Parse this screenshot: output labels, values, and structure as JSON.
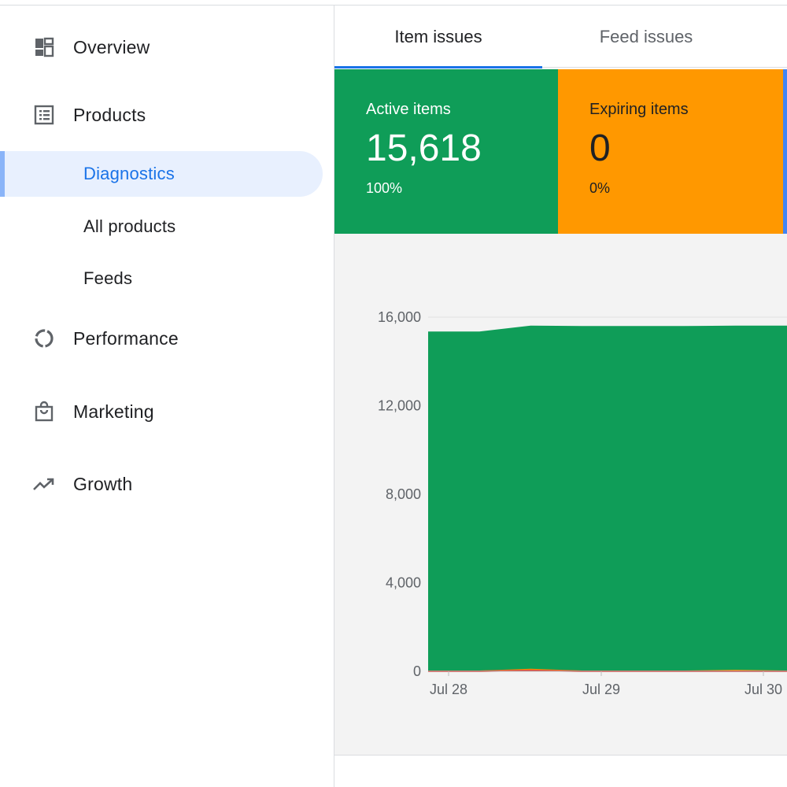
{
  "sidebar": {
    "items": [
      {
        "label": "Overview",
        "icon": "dashboard-icon"
      },
      {
        "label": "Products",
        "icon": "list-icon"
      },
      {
        "label": "Performance",
        "icon": "donut-chart-icon"
      },
      {
        "label": "Marketing",
        "icon": "shopping-bag-icon"
      },
      {
        "label": "Growth",
        "icon": "trending-up-icon"
      }
    ],
    "sub_items": [
      {
        "label": "Diagnostics",
        "active": true
      },
      {
        "label": "All products",
        "active": false
      },
      {
        "label": "Feeds",
        "active": false
      }
    ]
  },
  "tabs": [
    {
      "label": "Item issues",
      "active": true
    },
    {
      "label": "Feed issues",
      "active": false
    }
  ],
  "cards": [
    {
      "title": "Active items",
      "value": "15,618",
      "percent": "100%",
      "color": "#0f9d58"
    },
    {
      "title": "Expiring items",
      "value": "0",
      "percent": "0%",
      "color": "#ff9800"
    }
  ],
  "colors": {
    "accent": "#1a73e8",
    "active_bg": "#e8f0fe",
    "green": "#0f9d58",
    "orange": "#ff9800",
    "blue": "#4285f4"
  },
  "chart_data": {
    "type": "area",
    "x": [
      "Jul 28",
      "Jul 28",
      "Jul 28",
      "Jul 28",
      "Jul 29",
      "Jul 29",
      "Jul 29",
      "Jul 30"
    ],
    "x_ticks": [
      "Jul 28",
      "Jul 29",
      "Jul 30"
    ],
    "y_ticks": [
      "0",
      "4,000",
      "8,000",
      "12,000",
      "16,000"
    ],
    "ylim": [
      0,
      16000
    ],
    "series": [
      {
        "values": [
          15350,
          15350,
          15620,
          15600,
          15600,
          15600,
          15620,
          15618
        ],
        "color": "#0f9d58"
      },
      {
        "values": [
          0,
          0,
          80,
          0,
          0,
          0,
          30,
          0
        ],
        "color": "#ff9800"
      },
      {
        "values": [
          0,
          0,
          40,
          0,
          0,
          0,
          0,
          0
        ],
        "color": "#db4437"
      }
    ],
    "grid": true
  }
}
